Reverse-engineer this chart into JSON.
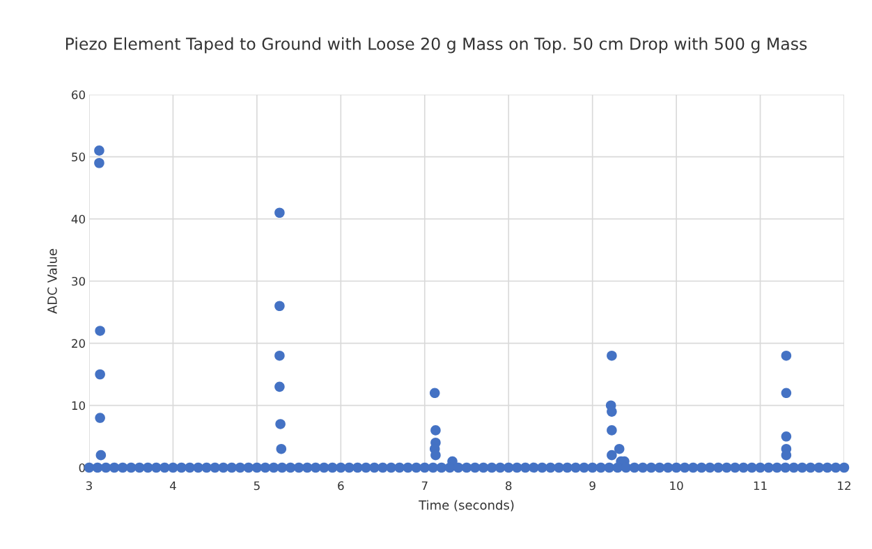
{
  "chart_data": {
    "type": "scatter",
    "title": "Piezo Element Taped to Ground with Loose 20 g Mass on Top. 50 cm Drop with 500 g Mass",
    "xlabel": "Time (seconds)",
    "ylabel": "ADC Value",
    "xlim": [
      3,
      12
    ],
    "xticks": [
      3,
      4,
      5,
      6,
      7,
      8,
      9,
      10,
      11,
      12
    ],
    "ylim": [
      0,
      60
    ],
    "yticks": [
      0,
      10,
      20,
      30,
      40,
      50,
      60
    ],
    "grid": true,
    "marker": "circle",
    "series": [
      {
        "color": "#4472c4",
        "x": [
          3.12,
          3.12,
          3.13,
          3.13,
          3.13,
          3.14,
          5.27,
          5.27,
          5.27,
          5.27,
          5.28,
          5.29,
          7.12,
          7.13,
          7.13,
          7.12,
          7.13,
          7.33,
          9.23,
          9.22,
          9.23,
          9.23,
          9.23,
          9.32,
          9.34,
          9.38,
          11.31,
          11.31,
          11.31,
          11.31,
          11.31,
          3.0,
          3.1,
          3.2,
          3.3,
          3.4,
          3.5,
          3.6,
          3.7,
          3.8,
          3.9,
          4.0,
          4.1,
          4.2,
          4.3,
          4.4,
          4.5,
          4.6,
          4.7,
          4.8,
          4.9,
          5.0,
          5.1,
          5.2,
          5.3,
          5.4,
          5.5,
          5.6,
          5.7,
          5.8,
          5.9,
          6.0,
          6.1,
          6.2,
          6.3,
          6.4,
          6.5,
          6.6,
          6.7,
          6.8,
          6.9,
          7.0,
          7.1,
          7.2,
          7.3,
          7.4,
          7.5,
          7.6,
          7.7,
          7.8,
          7.9,
          8.0,
          8.1,
          8.2,
          8.3,
          8.4,
          8.5,
          8.6,
          8.7,
          8.8,
          8.9,
          9.0,
          9.1,
          9.2,
          9.3,
          9.4,
          9.5,
          9.6,
          9.7,
          9.8,
          9.9,
          10.0,
          10.1,
          10.2,
          10.3,
          10.4,
          10.5,
          10.6,
          10.7,
          10.8,
          10.9,
          11.0,
          11.1,
          11.2,
          11.3,
          11.4,
          11.5,
          11.6,
          11.7,
          11.8,
          11.9,
          12.0
        ],
        "values": [
          51,
          49,
          22,
          15,
          8,
          2,
          41,
          26,
          18,
          13,
          7,
          3,
          12,
          6,
          4,
          3,
          2,
          1,
          18,
          10,
          9,
          6,
          2,
          3,
          1,
          1,
          18,
          12,
          5,
          3,
          2,
          0,
          0,
          0,
          0,
          0,
          0,
          0,
          0,
          0,
          0,
          0,
          0,
          0,
          0,
          0,
          0,
          0,
          0,
          0,
          0,
          0,
          0,
          0,
          0,
          0,
          0,
          0,
          0,
          0,
          0,
          0,
          0,
          0,
          0,
          0,
          0,
          0,
          0,
          0,
          0,
          0,
          0,
          0,
          0,
          0,
          0,
          0,
          0,
          0,
          0,
          0,
          0,
          0,
          0,
          0,
          0,
          0,
          0,
          0,
          0,
          0,
          0,
          0,
          0,
          0,
          0,
          0,
          0,
          0,
          0,
          0,
          0,
          0,
          0,
          0,
          0,
          0,
          0,
          0,
          0,
          0,
          0,
          0,
          0,
          0,
          0,
          0,
          0,
          0,
          0,
          0
        ]
      }
    ]
  }
}
